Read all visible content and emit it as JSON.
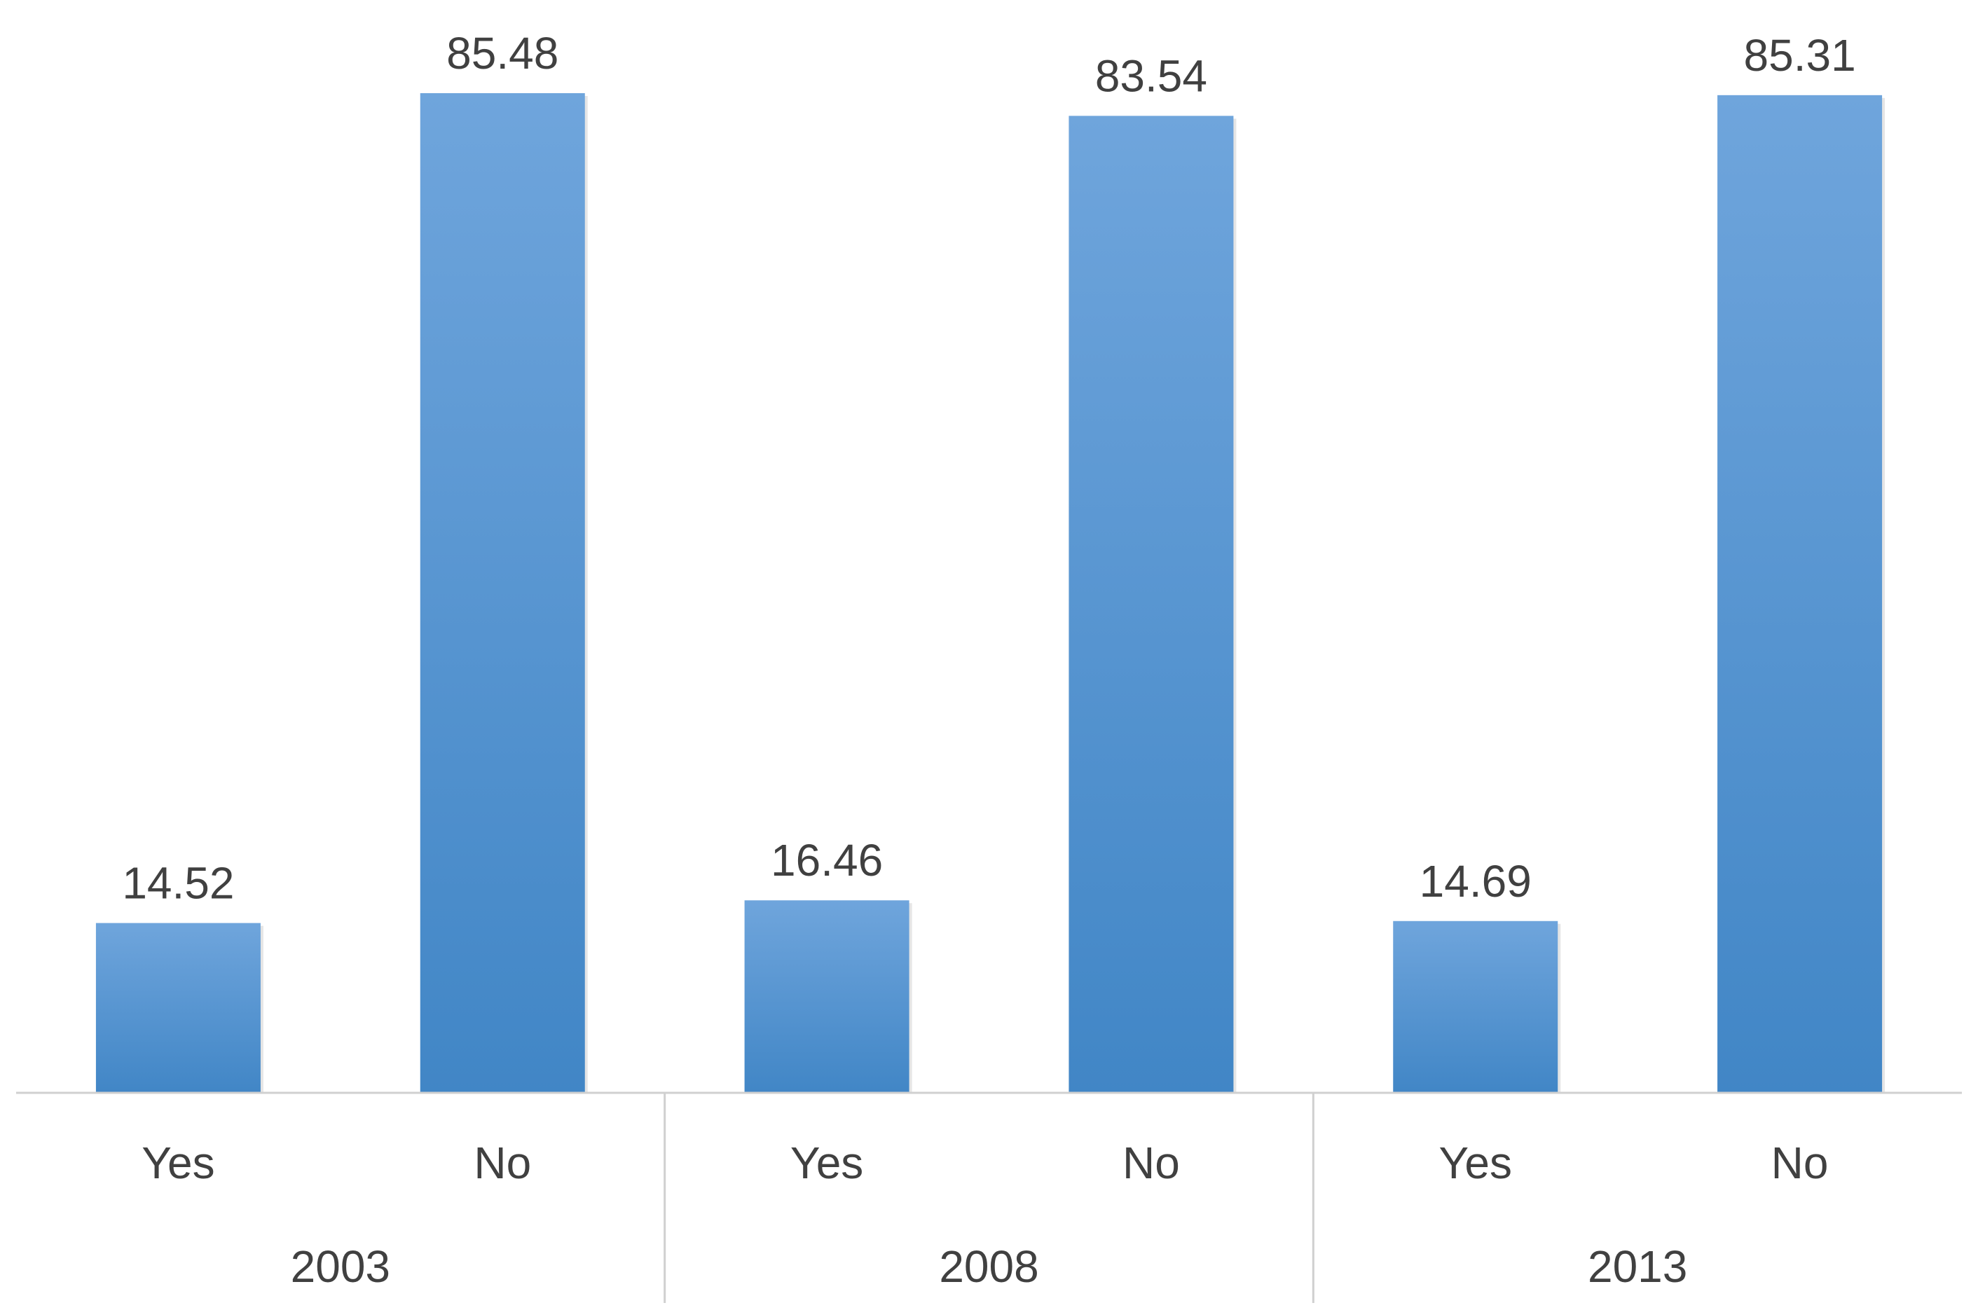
{
  "chart_data": {
    "type": "bar",
    "title": "",
    "xlabel": "",
    "ylabel": "",
    "groups": [
      {
        "label": "2003",
        "categories": [
          "Yes",
          "No"
        ],
        "values": [
          14.52,
          85.48
        ],
        "data_labels": [
          "14.52",
          "85.48"
        ]
      },
      {
        "label": "2008",
        "categories": [
          "Yes",
          "No"
        ],
        "values": [
          16.46,
          83.54
        ],
        "data_labels": [
          "16.46",
          "83.54"
        ]
      },
      {
        "label": "2013",
        "categories": [
          "Yes",
          "No"
        ],
        "values": [
          14.69,
          85.31
        ],
        "data_labels": [
          "14.69",
          "85.31"
        ]
      }
    ],
    "ylim": [
      0,
      90
    ],
    "grid": false,
    "legend": "none",
    "colors": {
      "bar_top": "#6FA5DC",
      "bar_bottom": "#4186C6",
      "axis": "#D0D0D0",
      "text": "#404040"
    }
  }
}
